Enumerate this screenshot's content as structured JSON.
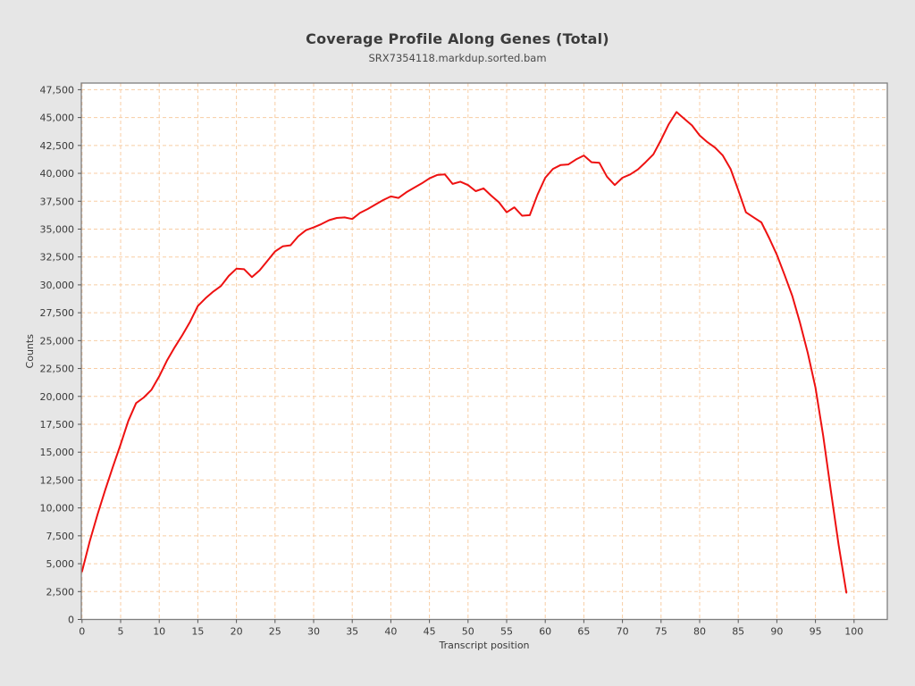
{
  "header": {
    "title": "Coverage Profile Along Genes (Total)",
    "subtitle": "SRX7354118.markdup.sorted.bam"
  },
  "chart_data": {
    "type": "line",
    "title": "Coverage Profile Along Genes (Total)",
    "subtitle": "SRX7354118.markdup.sorted.bam",
    "xlabel": "Transcript position",
    "ylabel": "Counts",
    "x_note": "x value = array index, transcript position percentile 0-99",
    "values": [
      4300,
      7000,
      9400,
      11600,
      13700,
      15700,
      17800,
      19400,
      19900,
      20600,
      21800,
      23200,
      24400,
      25500,
      26700,
      28100,
      28800,
      29400,
      29900,
      30800,
      31450,
      31400,
      30700,
      31300,
      32150,
      33000,
      33450,
      33550,
      34350,
      34900,
      35150,
      35450,
      35800,
      36000,
      36050,
      35900,
      36450,
      36800,
      37200,
      37600,
      37930,
      37790,
      38300,
      38700,
      39100,
      39550,
      39850,
      39900,
      39050,
      39250,
      38950,
      38400,
      38650,
      38000,
      37400,
      36500,
      36950,
      36200,
      36250,
      38100,
      39600,
      40400,
      40750,
      40800,
      41250,
      41600,
      41000,
      40950,
      39700,
      38950,
      39600,
      39900,
      40350,
      41000,
      41700,
      43000,
      44400,
      45500,
      44900,
      44300,
      43400,
      42800,
      42300,
      41600,
      40400,
      38500,
      36500,
      36050,
      35600,
      34200,
      32700,
      30900,
      29000,
      26600,
      23900,
      20800,
      16500,
      11500,
      6700,
      2400
    ],
    "xlim": [
      0,
      104.3
    ],
    "ylim": [
      0,
      47500
    ],
    "x_ticks": [
      0,
      5,
      10,
      15,
      20,
      25,
      30,
      35,
      40,
      45,
      50,
      55,
      60,
      65,
      70,
      75,
      80,
      85,
      90,
      95,
      100
    ],
    "y_tick_min": 0,
    "y_tick_max": 47500,
    "y_tick_step": 2500,
    "grid": true,
    "legend": "none",
    "colors": {
      "line": "#ee1111",
      "grid": "#f8cda4",
      "plot_background": "#ffffff",
      "page_background": "#e6e6e6",
      "plot_border": "#7f7f7f",
      "tick": "#555555",
      "text": "#3a3a3a"
    }
  }
}
